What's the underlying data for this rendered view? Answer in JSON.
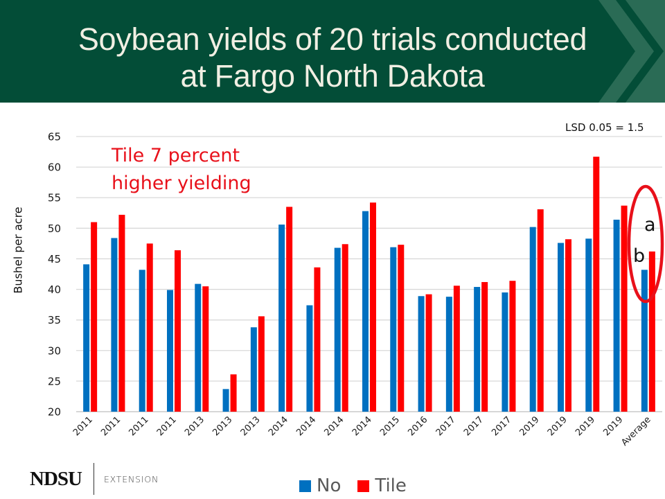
{
  "header": {
    "title_lines": [
      "Soybean yields of 20 trials conducted",
      "at Fargo North Dakota"
    ],
    "background_color": "#034D37",
    "chevron_color": "#2A6B55",
    "title_color": "#F1EFE3"
  },
  "annotation": {
    "lines": [
      "Tile 7 percent",
      "higher yielding"
    ],
    "color": "#E8101A"
  },
  "lsd_note": "LSD 0.05 = 1.5",
  "significance": {
    "tile_letter": "a",
    "no_letter": "b",
    "ellipse_color": "#E8101A"
  },
  "legend": [
    {
      "label": "No",
      "color": "#0070C0"
    },
    {
      "label": "Tile",
      "color": "#FF0000"
    }
  ],
  "footer": {
    "logo_text": "NDSU",
    "logo_subtext": "EXTENSION"
  },
  "chart_data": {
    "type": "bar",
    "title": "Soybean yields of 20 trials conducted at Fargo North Dakota",
    "xlabel": "",
    "ylabel": "Bushel per acre",
    "ylim": [
      20,
      65
    ],
    "yticks": [
      20,
      25,
      30,
      35,
      40,
      45,
      50,
      55,
      60,
      65
    ],
    "grid": true,
    "legend_position": "bottom",
    "categories": [
      "2011",
      "2011",
      "2011",
      "2011",
      "2013",
      "2013",
      "2013",
      "2014",
      "2014",
      "2014",
      "2014",
      "2015",
      "2016",
      "2017",
      "2017",
      "2017",
      "2019",
      "2019",
      "2019",
      "2019",
      "Average"
    ],
    "series": [
      {
        "name": "No",
        "color": "#0070C0",
        "values": [
          44.1,
          48.4,
          43.2,
          39.9,
          40.9,
          23.7,
          33.8,
          50.6,
          37.4,
          46.8,
          52.8,
          46.9,
          38.9,
          38.8,
          40.4,
          39.5,
          50.2,
          47.6,
          48.3,
          51.4,
          43.2
        ]
      },
      {
        "name": "Tile",
        "color": "#FF0000",
        "values": [
          51.0,
          52.2,
          47.5,
          46.4,
          40.5,
          26.1,
          35.6,
          53.5,
          43.6,
          47.4,
          54.2,
          47.3,
          39.2,
          40.6,
          41.2,
          41.4,
          53.1,
          48.2,
          61.7,
          53.7,
          46.2
        ]
      }
    ],
    "annotations": [
      "Tile 7 percent higher yielding",
      "LSD 0.05 = 1.5",
      "a",
      "b"
    ]
  }
}
